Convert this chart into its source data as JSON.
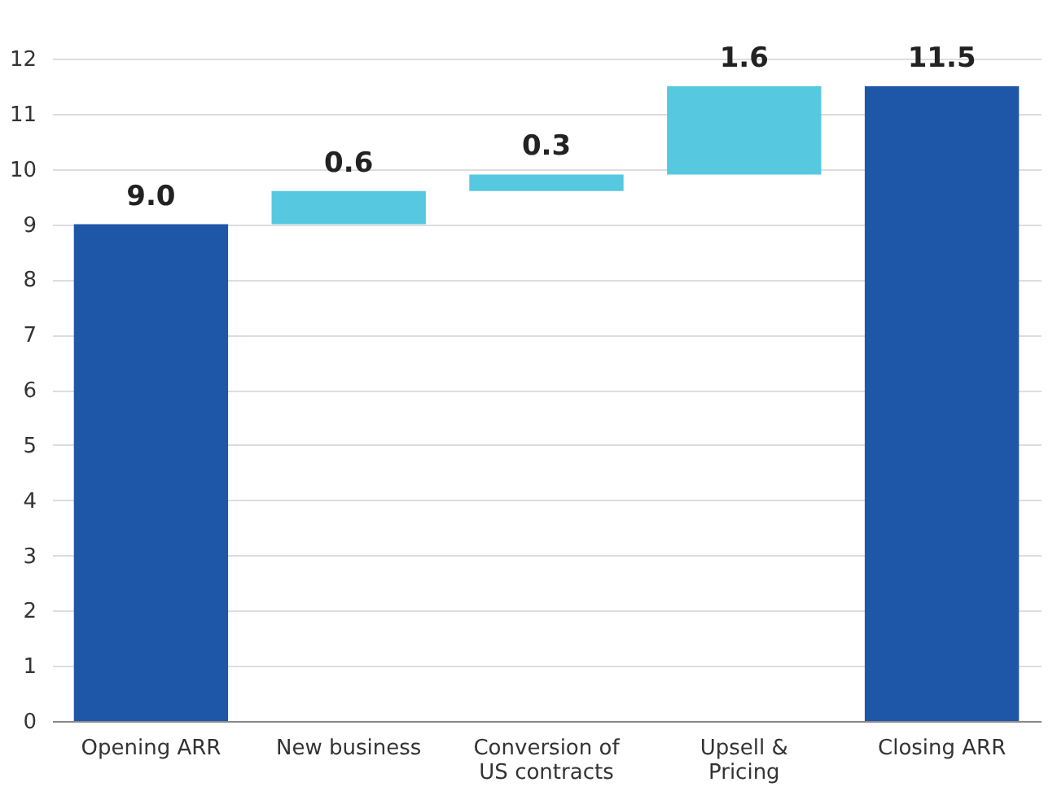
{
  "chart_data": {
    "type": "bar",
    "categories": [
      "Opening ARR",
      "New business",
      "Conversion of US contracts",
      "Upsell & Pricing",
      "Closing ARR"
    ],
    "values": [
      9.0,
      0.6,
      0.3,
      1.6,
      11.5
    ],
    "base": [
      0,
      9.0,
      9.6,
      9.9,
      0
    ],
    "colors": [
      "#1f57a8",
      "#56c8e0",
      "#56c8e0",
      "#56c8e0",
      "#1f57a8"
    ],
    "value_labels": [
      "9.0",
      "0.6",
      "0.3",
      "1.6",
      "11.5"
    ],
    "ylim": [
      0,
      12
    ],
    "yticks": [
      0,
      1,
      2,
      3,
      4,
      5,
      6,
      7,
      8,
      9,
      10,
      11,
      12
    ],
    "grid": "y"
  }
}
